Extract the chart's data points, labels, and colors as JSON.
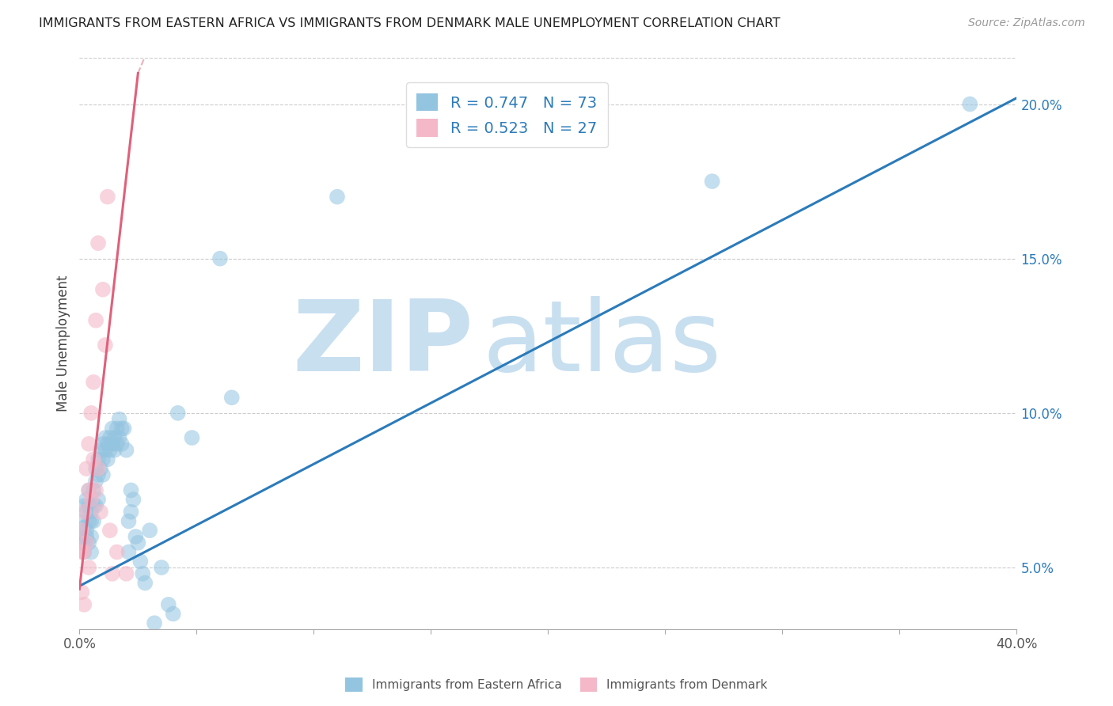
{
  "title": "IMMIGRANTS FROM EASTERN AFRICA VS IMMIGRANTS FROM DENMARK MALE UNEMPLOYMENT CORRELATION CHART",
  "source": "Source: ZipAtlas.com",
  "ylabel": "Male Unemployment",
  "xlim": [
    0,
    0.4
  ],
  "ylim": [
    0.03,
    0.215
  ],
  "xticks": [
    0.0,
    0.05,
    0.1,
    0.15,
    0.2,
    0.25,
    0.3,
    0.35,
    0.4
  ],
  "xtick_labels": [
    "0.0%",
    "",
    "",
    "",
    "",
    "",
    "",
    "",
    "40.0%"
  ],
  "yticks_right": [
    0.05,
    0.1,
    0.15,
    0.2
  ],
  "ytick_right_labels": [
    "5.0%",
    "10.0%",
    "15.0%",
    "20.0%"
  ],
  "blue_R": 0.747,
  "blue_N": 73,
  "pink_R": 0.523,
  "pink_N": 27,
  "blue_color": "#93c4e0",
  "pink_color": "#f4b8c8",
  "blue_line_color": "#2b7bba",
  "pink_line_color": "#e0607a",
  "blue_trendline": [
    0.0,
    0.044,
    0.4,
    0.202
  ],
  "pink_trendline": [
    0.0,
    0.043,
    0.025,
    0.21
  ],
  "pink_trendline_dashed": [
    0.025,
    0.21,
    0.055,
    0.265
  ],
  "watermark_part1": "ZIP",
  "watermark_part2": "atlas",
  "watermark_color": "#c8dff0",
  "legend_label_blue": "Immigrants from Eastern Africa",
  "legend_label_pink": "Immigrants from Denmark",
  "blue_scatter_x": [
    0.001,
    0.001,
    0.001,
    0.002,
    0.002,
    0.002,
    0.002,
    0.003,
    0.003,
    0.003,
    0.003,
    0.004,
    0.004,
    0.004,
    0.004,
    0.005,
    0.005,
    0.005,
    0.005,
    0.006,
    0.006,
    0.006,
    0.007,
    0.007,
    0.007,
    0.008,
    0.008,
    0.008,
    0.009,
    0.009,
    0.01,
    0.01,
    0.01,
    0.011,
    0.011,
    0.012,
    0.012,
    0.013,
    0.013,
    0.014,
    0.014,
    0.015,
    0.015,
    0.016,
    0.016,
    0.017,
    0.017,
    0.018,
    0.018,
    0.019,
    0.02,
    0.021,
    0.021,
    0.022,
    0.022,
    0.023,
    0.024,
    0.025,
    0.026,
    0.027,
    0.028,
    0.03,
    0.032,
    0.035,
    0.038,
    0.04,
    0.042,
    0.048,
    0.06,
    0.065,
    0.11,
    0.27,
    0.38
  ],
  "blue_scatter_y": [
    0.06,
    0.065,
    0.058,
    0.063,
    0.058,
    0.07,
    0.055,
    0.068,
    0.062,
    0.072,
    0.06,
    0.075,
    0.065,
    0.07,
    0.058,
    0.065,
    0.06,
    0.068,
    0.055,
    0.075,
    0.07,
    0.065,
    0.082,
    0.078,
    0.07,
    0.085,
    0.08,
    0.072,
    0.088,
    0.082,
    0.09,
    0.085,
    0.08,
    0.092,
    0.088,
    0.09,
    0.085,
    0.092,
    0.088,
    0.095,
    0.09,
    0.092,
    0.088,
    0.095,
    0.09,
    0.098,
    0.092,
    0.095,
    0.09,
    0.095,
    0.088,
    0.065,
    0.055,
    0.075,
    0.068,
    0.072,
    0.06,
    0.058,
    0.052,
    0.048,
    0.045,
    0.062,
    0.032,
    0.05,
    0.038,
    0.035,
    0.1,
    0.092,
    0.15,
    0.105,
    0.17,
    0.175,
    0.2
  ],
  "pink_scatter_x": [
    0.001,
    0.001,
    0.001,
    0.002,
    0.002,
    0.002,
    0.003,
    0.003,
    0.004,
    0.004,
    0.004,
    0.005,
    0.005,
    0.006,
    0.006,
    0.007,
    0.007,
    0.008,
    0.008,
    0.009,
    0.01,
    0.011,
    0.012,
    0.013,
    0.014,
    0.016,
    0.02
  ],
  "pink_scatter_y": [
    0.055,
    0.062,
    0.042,
    0.068,
    0.055,
    0.038,
    0.082,
    0.058,
    0.09,
    0.075,
    0.05,
    0.1,
    0.072,
    0.11,
    0.085,
    0.13,
    0.075,
    0.155,
    0.082,
    0.068,
    0.14,
    0.122,
    0.17,
    0.062,
    0.048,
    0.055,
    0.048
  ]
}
